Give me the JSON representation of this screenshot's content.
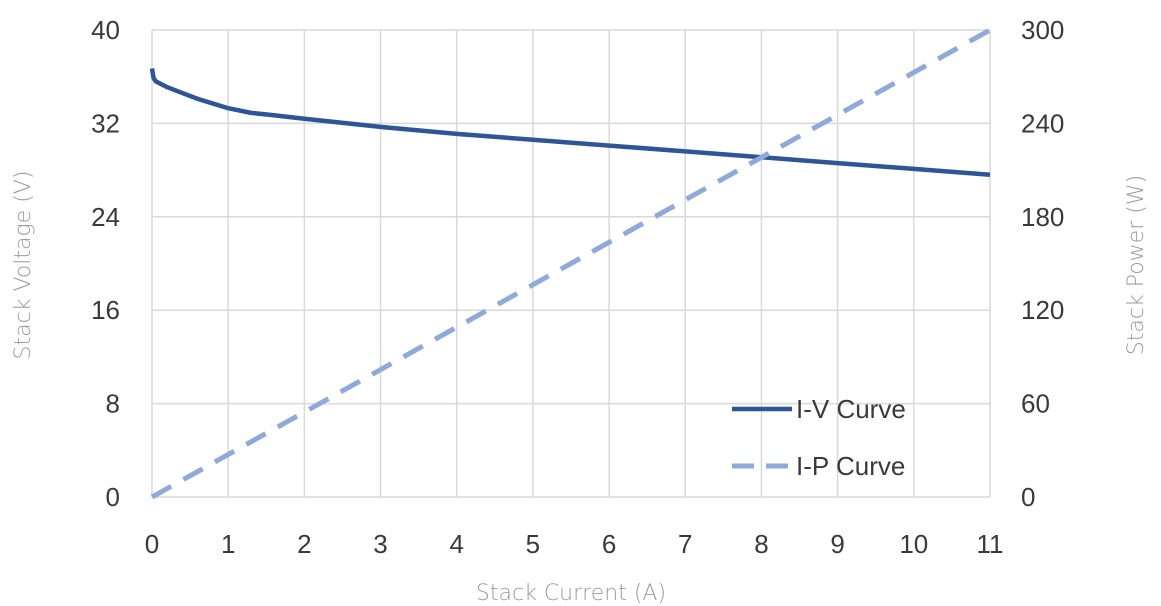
{
  "chart_data": {
    "type": "line",
    "xlabel": "Stack Current (A)",
    "ylabel_left": "Stack Voltage (V)",
    "ylabel_right": "Stack Power (W)",
    "xlim": [
      0,
      11
    ],
    "ylim_left": [
      0,
      40
    ],
    "ylim_right": [
      0,
      300
    ],
    "x_ticks": [
      "0",
      "1",
      "2",
      "3",
      "4",
      "5",
      "6",
      "7",
      "8",
      "9",
      "10",
      "11"
    ],
    "y_left_ticks": [
      "0",
      "8",
      "16",
      "24",
      "32",
      "40"
    ],
    "y_right_ticks": [
      "0",
      "60",
      "120",
      "180",
      "240",
      "300"
    ],
    "grid": true,
    "legend_placement": "bottom-right",
    "series": [
      {
        "name": "I-V Curve",
        "axis": "left",
        "style": "solid",
        "color": "#2e5597",
        "x": [
          0,
          0.02,
          0.05,
          0.2,
          0.4,
          0.6,
          0.8,
          1.0,
          1.3,
          1.6,
          2,
          3,
          4,
          5,
          6,
          7,
          8,
          9,
          10,
          11
        ],
        "y": [
          36.7,
          35.9,
          35.6,
          35.1,
          34.6,
          34.1,
          33.7,
          33.3,
          32.9,
          32.7,
          32.4,
          31.7,
          31.1,
          30.6,
          30.1,
          29.6,
          29.1,
          28.6,
          28.1,
          27.6
        ]
      },
      {
        "name": "I-P Curve",
        "axis": "right",
        "style": "dashed",
        "color": "#8eaadb",
        "x": [
          0,
          11
        ],
        "y": [
          0,
          300
        ]
      }
    ]
  }
}
